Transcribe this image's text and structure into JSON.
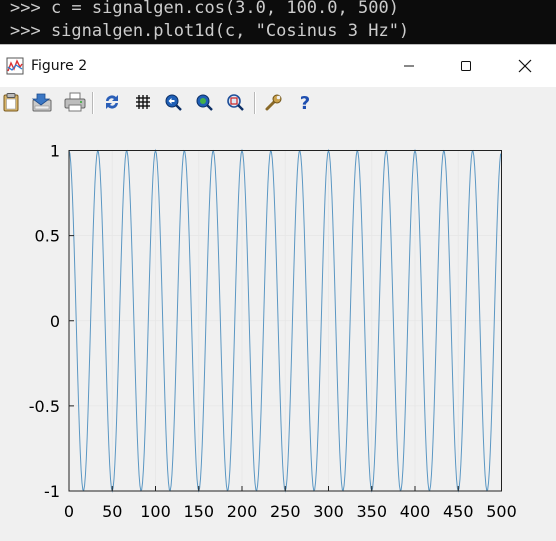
{
  "terminal": {
    "lines": [
      ">>> c = signalgen.cos(3.0, 100.0, 500)",
      ">>> signalgen.plot1d(c, \"Cosinus 3 Hz\")"
    ]
  },
  "window": {
    "title": "Figure 2",
    "controls": {
      "minimize": "minimize",
      "maximize": "maximize",
      "close": "close"
    }
  },
  "toolbar": {
    "items": [
      "clipboard-icon",
      "save-icon",
      "print-icon",
      "refresh-icon",
      "grid-icon",
      "zoom-in-icon",
      "zoom-out-icon",
      "zoom-fit-icon",
      "settings-icon",
      "help-icon"
    ]
  },
  "colors": {
    "line": "#5b97c3",
    "grid": "#e6e6e6"
  },
  "chart_data": {
    "type": "line",
    "title": "",
    "xlabel": "",
    "ylabel": "",
    "series": [
      {
        "function": "cos",
        "frequency_hz": 3.0,
        "sample_rate_hz": 100.0,
        "samples": 500
      }
    ],
    "xlim": [
      0,
      500
    ],
    "ylim": [
      -1,
      1
    ],
    "xticks": [
      "0",
      "50",
      "100",
      "150",
      "200",
      "250",
      "300",
      "350",
      "400",
      "450",
      "500"
    ],
    "yticks": [
      "1",
      "0.5",
      "0",
      "-0.5",
      "-1"
    ],
    "grid": true,
    "legend": "none"
  }
}
